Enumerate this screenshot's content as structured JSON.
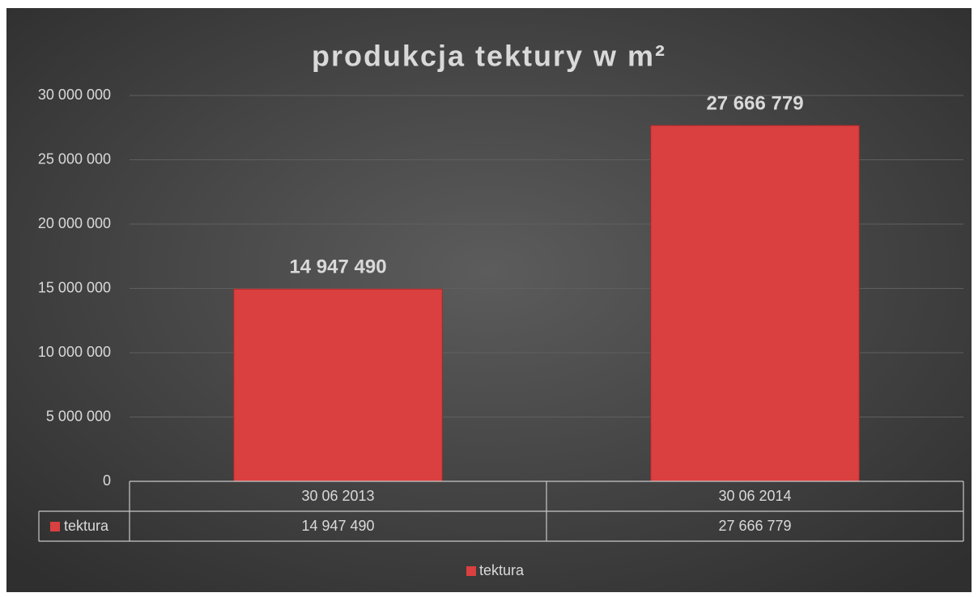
{
  "chart_data": {
    "type": "bar",
    "title": "produkcja tektury w m²",
    "categories": [
      "30 06 2013",
      "30 06 2014"
    ],
    "series": [
      {
        "name": "tektura",
        "color": "#d9403f",
        "values": [
          14947490,
          27666779
        ],
        "value_labels": [
          "14 947 490",
          "27 666 779"
        ]
      }
    ],
    "ylim": [
      0,
      30000000
    ],
    "yticks": [
      0,
      {
        "value": 5000000,
        "label": "5 000 000"
      },
      {
        "value": 10000000,
        "label": "10 000 000"
      },
      {
        "value": 15000000,
        "label": "15 000 000"
      },
      {
        "value": 20000000,
        "label": "20 000 000"
      },
      {
        "value": 25000000,
        "label": "25 000 000"
      },
      {
        "value": 30000000,
        "label": "30 000 000"
      }
    ],
    "grid": true,
    "data_table": true,
    "legend": "bottom"
  }
}
